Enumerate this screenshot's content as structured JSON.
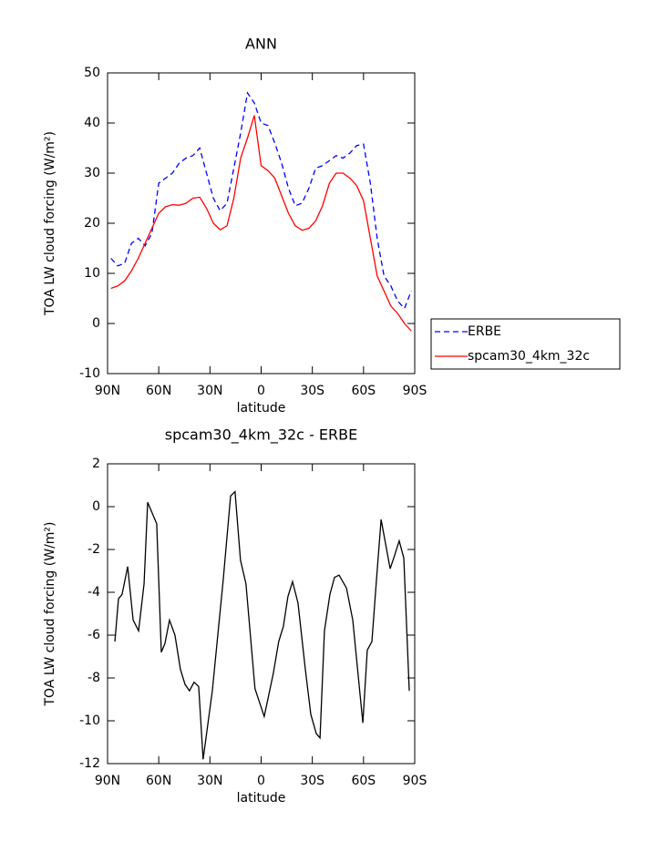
{
  "chart_data": [
    {
      "type": "line",
      "title": "ANN",
      "x_label": "latitude",
      "y_label": "TOA LW cloud forcing (W/m²)",
      "x": [
        88,
        84,
        80,
        76,
        72,
        68,
        64,
        60,
        56,
        52,
        48,
        44,
        40,
        36,
        32,
        28,
        24,
        20,
        16,
        12,
        8,
        4,
        0,
        -4,
        -8,
        -12,
        -16,
        -20,
        -24,
        -28,
        -32,
        -36,
        -40,
        -44,
        -48,
        -52,
        -56,
        -60,
        -64,
        -68,
        -72,
        -76,
        -80,
        -84,
        -88
      ],
      "series": [
        {
          "name": "ERBE",
          "color": "#0000ff",
          "linestyle": "dashed",
          "values": [
            13,
            11.5,
            12,
            16,
            17,
            15.5,
            18,
            28,
            29,
            30,
            32,
            33,
            33.5,
            35,
            30,
            25,
            22.5,
            24,
            31,
            38,
            46,
            44,
            40,
            39.5,
            36,
            32,
            27,
            23.5,
            24,
            27,
            31,
            31.5,
            32.5,
            33.5,
            33,
            34,
            35.5,
            35.8,
            28,
            17,
            9.5,
            7.5,
            4.5,
            3,
            6.5
          ]
        },
        {
          "name": "spcam30_4km_32c",
          "color": "#ff0000",
          "linestyle": "solid",
          "values": [
            7,
            7.5,
            8.5,
            10.5,
            13,
            16,
            19,
            22,
            23.3,
            23.7,
            23.6,
            24,
            25,
            25.2,
            23,
            20,
            18.7,
            19.5,
            25,
            33,
            37,
            41.5,
            31.5,
            30.5,
            29,
            25.5,
            22,
            19.5,
            18.6,
            19,
            20.5,
            23.5,
            28,
            30,
            30,
            29,
            27.5,
            24.5,
            17,
            9.5,
            6.5,
            3.5,
            2,
            0,
            -1.5
          ]
        }
      ],
      "xlim": [
        90,
        -90
      ],
      "xticks": [
        {
          "value": 90,
          "label": "90N"
        },
        {
          "value": 60,
          "label": "60N"
        },
        {
          "value": 30,
          "label": "30N"
        },
        0,
        {
          "value": -30,
          "label": "30S"
        },
        {
          "value": -60,
          "label": "60S"
        },
        {
          "value": -90,
          "label": "90S"
        }
      ],
      "ylim": [
        -10,
        50
      ],
      "yticks": [
        -10,
        0,
        10,
        20,
        30,
        40,
        50
      ],
      "legend": "right"
    },
    {
      "type": "line",
      "title": "spcam30_4km_32c - ERBE",
      "x_label": "latitude",
      "y_label": "TOA LW cloud forcing (W/m²)",
      "x": [
        85.7,
        83.6,
        81.5,
        78.2,
        75.0,
        71.8,
        68.6,
        66.5,
        61.2,
        58.5,
        56.4,
        53.7,
        50.5,
        47.3,
        44.6,
        42.0,
        39.3,
        36.6,
        34.0,
        28.6,
        22.2,
        17.9,
        15.3,
        12.1,
        8.9,
        3.6,
        -1.8,
        -7.1,
        -10.3,
        -13.0,
        -15.7,
        -18.4,
        -21.6,
        -25.9,
        -29.1,
        -32.3,
        -34.5,
        -37.1,
        -40.3,
        -43.0,
        -45.7,
        -50.0,
        -53.7,
        -59.6,
        -62.2,
        -64.9,
        -67.6,
        -70.3,
        -75.6,
        -77.7,
        -80.9,
        -83.6,
        -86.8
      ],
      "series": [
        {
          "name": "spcam30_4km_32c - ERBE",
          "color": "#000000",
          "linestyle": "solid",
          "values": [
            -6.3,
            -4.3,
            -4.1,
            -2.8,
            -5.3,
            -5.8,
            -3.6,
            0.2,
            -0.8,
            -6.8,
            -6.4,
            -5.3,
            -6.0,
            -7.6,
            -8.3,
            -8.6,
            -8.2,
            -8.4,
            -11.8,
            -8.6,
            -3.4,
            0.5,
            0.7,
            -2.5,
            -3.6,
            -8.5,
            -9.8,
            -7.8,
            -6.3,
            -5.6,
            -4.2,
            -3.5,
            -4.5,
            -7.6,
            -9.7,
            -10.6,
            -10.8,
            -5.8,
            -4.1,
            -3.3,
            -3.2,
            -3.8,
            -5.3,
            -10.1,
            -6.7,
            -6.3,
            -3.4,
            -0.6,
            -2.9,
            -2.4,
            -1.6,
            -2.4,
            -8.6
          ]
        }
      ],
      "xlim": [
        90,
        -90
      ],
      "xticks": [
        {
          "value": 90,
          "label": "90N"
        },
        {
          "value": 60,
          "label": "60N"
        },
        {
          "value": 30,
          "label": "30N"
        },
        0,
        {
          "value": -30,
          "label": "30S"
        },
        {
          "value": -60,
          "label": "60S"
        },
        {
          "value": -90,
          "label": "90S"
        }
      ],
      "ylim": [
        -12,
        2
      ],
      "yticks": [
        -12,
        -10,
        -8,
        -6,
        -4,
        -2,
        0,
        2
      ]
    }
  ]
}
